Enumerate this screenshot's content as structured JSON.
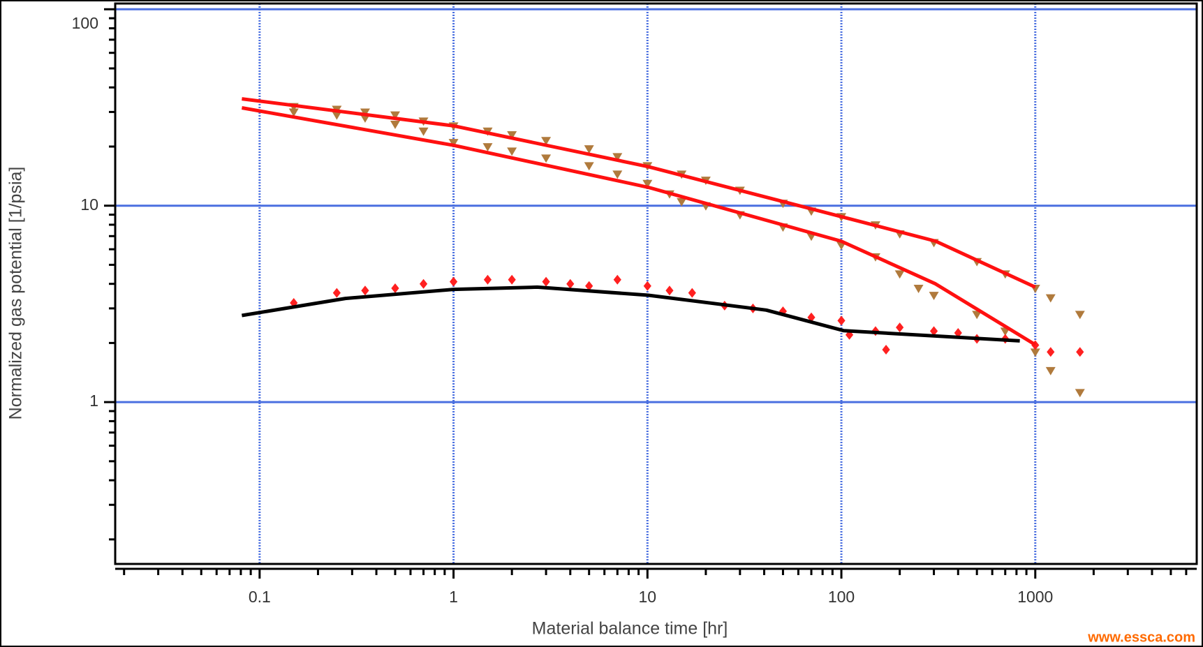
{
  "chart_data": {
    "type": "line",
    "xlabel": "Material balance time [hr]",
    "ylabel": "Normalized gas potential [1/psia]",
    "watermark": "www.essca.com",
    "xscale": "log",
    "yscale": "log",
    "xlim": [
      0.018,
      6800
    ],
    "ylim": [
      0.15,
      107
    ],
    "xticks": [
      0.1,
      1,
      10,
      100,
      1000
    ],
    "yticks": [
      1,
      10,
      100
    ],
    "xminorticks": [
      0.02,
      0.03,
      0.04,
      0.05,
      0.06,
      0.07,
      0.08,
      0.09,
      0.2,
      0.3,
      0.4,
      0.5,
      0.6,
      0.7,
      0.8,
      0.9,
      2,
      3,
      4,
      5,
      6,
      7,
      8,
      9,
      20,
      30,
      40,
      50,
      60,
      70,
      80,
      90,
      200,
      300,
      400,
      500,
      600,
      700,
      800,
      900,
      2000,
      3000,
      4000,
      5000,
      6000
    ],
    "yminorticks": [
      0.2,
      0.3,
      0.4,
      0.5,
      0.6,
      0.7,
      0.8,
      0.9,
      2,
      3,
      4,
      5,
      6,
      7,
      8,
      9,
      20,
      30,
      40,
      50,
      60,
      70,
      80,
      90
    ],
    "grid": true,
    "grid_color": "#4a6fe0",
    "series": [
      {
        "mode": "marker",
        "marker": "triangle-down",
        "color": "#b07a3c",
        "x": [
          0.15,
          0.25,
          0.35,
          0.5,
          0.7,
          1,
          1.5,
          2,
          3,
          5,
          7,
          10,
          15,
          20,
          30,
          50,
          70,
          100,
          150,
          200,
          300,
          500,
          700,
          1000,
          1200,
          1700
        ],
        "values": [
          32,
          31,
          30,
          29,
          27,
          25.5,
          24,
          23,
          21.5,
          19.5,
          17.8,
          16,
          14.5,
          13.5,
          12,
          10.3,
          9.4,
          8.8,
          8,
          7.2,
          6.5,
          5.2,
          4.5,
          3.8,
          3.4,
          2.8
        ]
      },
      {
        "mode": "marker",
        "marker": "triangle-down",
        "color": "#b07a3c",
        "x": [
          0.15,
          0.25,
          0.35,
          0.5,
          0.7,
          1,
          1.5,
          2,
          3,
          5,
          7,
          10,
          13,
          15,
          20,
          30,
          50,
          70,
          100,
          150,
          200,
          250,
          300,
          500,
          700,
          1000,
          1200,
          1700
        ],
        "values": [
          30,
          29,
          28,
          26,
          24,
          21,
          20,
          19,
          17.5,
          16,
          14.5,
          13,
          11.5,
          10.5,
          10,
          9,
          7.8,
          7,
          6.3,
          5.5,
          4.5,
          3.8,
          3.5,
          2.8,
          2.3,
          1.8,
          1.45,
          1.12
        ]
      },
      {
        "mode": "marker",
        "marker": "diamond",
        "color": "#ff2020",
        "x": [
          0.15,
          0.25,
          0.35,
          0.5,
          0.7,
          1,
          1.5,
          2,
          3,
          4,
          5,
          7,
          10,
          13,
          17,
          25,
          35,
          50,
          70,
          100,
          110,
          150,
          170,
          200,
          300,
          400,
          500,
          700,
          1000,
          1200,
          1700
        ],
        "values": [
          3.2,
          3.6,
          3.7,
          3.8,
          4.0,
          4.1,
          4.2,
          4.2,
          4.1,
          4.0,
          3.9,
          4.2,
          3.9,
          3.7,
          3.6,
          3.1,
          3.0,
          2.9,
          2.7,
          2.6,
          2.2,
          2.3,
          1.85,
          2.4,
          2.3,
          2.25,
          2.1,
          2.1,
          1.95,
          1.8,
          1.8
        ]
      },
      {
        "mode": "line",
        "color": "#ff1010",
        "x": [
          0.081,
          1,
          10.1,
          99.6,
          306,
          1000
        ],
        "values": [
          35,
          25.5,
          15.8,
          8.8,
          6.6,
          3.85
        ]
      },
      {
        "mode": "line",
        "color": "#ff1010",
        "x": [
          0.081,
          1,
          10.1,
          99.6,
          306,
          1000
        ],
        "values": [
          31.5,
          20.3,
          12.4,
          6.6,
          4.0,
          1.96
        ]
      },
      {
        "mode": "line",
        "color": "#000000",
        "x": [
          0.081,
          0.277,
          1,
          2.7,
          10.1,
          41,
          103,
          832
        ],
        "values": [
          2.76,
          3.37,
          3.75,
          3.85,
          3.5,
          2.94,
          2.31,
          2.05
        ]
      }
    ]
  }
}
